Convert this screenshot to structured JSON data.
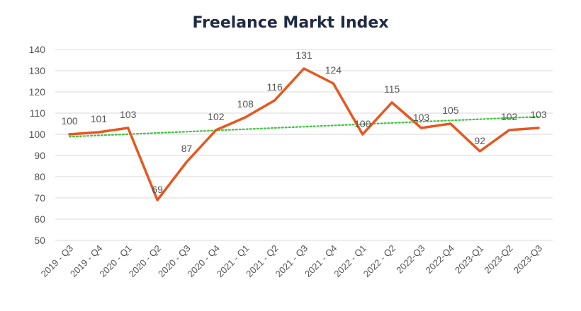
{
  "chart_data": {
    "type": "line",
    "title": "Freelance Markt Index",
    "xlabel": "",
    "ylabel": "",
    "categories": [
      "2019 - Q3",
      "2019 - Q4",
      "2020 - Q1",
      "2020 - Q2",
      "2020 - Q3",
      "2020 - Q4",
      "2021 - Q1",
      "2021 - Q2",
      "2021 - Q3",
      "2021 - Q4",
      "2022 - Q1",
      "2022 - Q2",
      "2022-Q3",
      "2022-Q4",
      "2023-Q1",
      "2023-Q2",
      "2023-Q3"
    ],
    "series": [
      {
        "values": [
          100,
          101,
          103,
          69,
          87,
          102,
          108,
          116,
          131,
          124,
          100,
          115,
          103,
          105,
          92,
          102,
          103
        ],
        "color": "#e8561e",
        "style": "solid"
      }
    ],
    "trendline": {
      "type": "linear",
      "color": "#3cc43c",
      "style": "dotted"
    },
    "ylim": [
      50,
      140
    ],
    "yticks": [
      50,
      60,
      70,
      80,
      90,
      100,
      110,
      120,
      130,
      140
    ],
    "grid": true,
    "legend": "none"
  }
}
